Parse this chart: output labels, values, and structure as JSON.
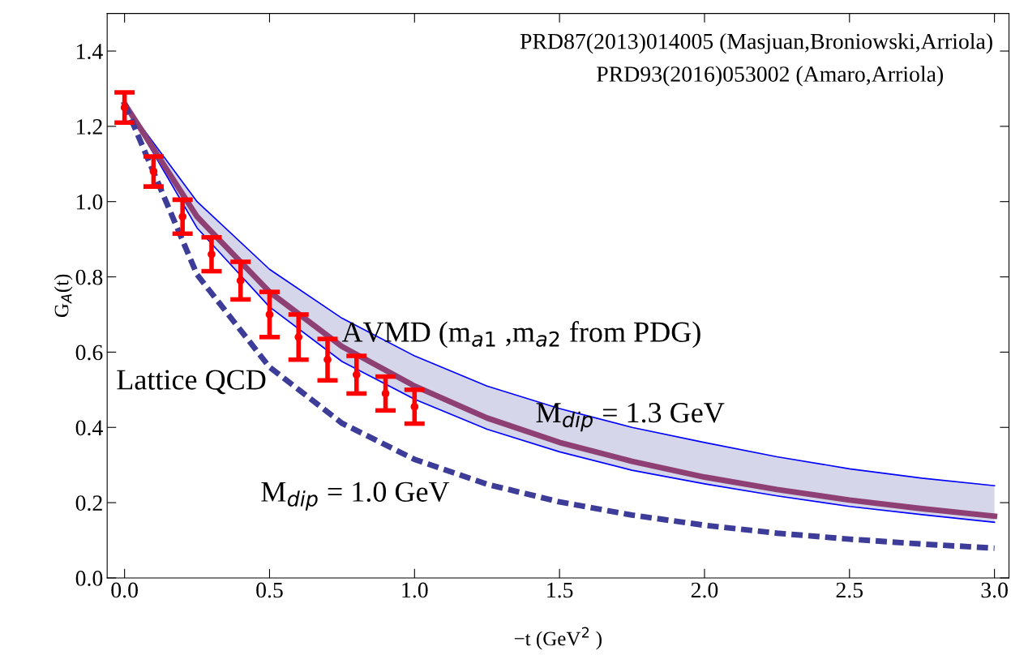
{
  "chart_data": {
    "type": "line",
    "xlabel": "−t (GeV$^{2}$ )",
    "ylabel": "G$_{A}$(t)",
    "xlim": [
      -0.06,
      3.05
    ],
    "ylim": [
      0,
      1.5
    ],
    "xticks": [
      {
        "value": 0,
        "label": "0.0"
      },
      0.5,
      {
        "value": 1,
        "label": "1.0"
      },
      1.5,
      {
        "value": 2,
        "label": "2.0"
      },
      2.5,
      {
        "value": 3,
        "label": "3.0"
      }
    ],
    "yticks": [
      {
        "value": 0,
        "label": "0.0"
      },
      0.2,
      0.4,
      0.6,
      0.8,
      {
        "value": 1,
        "label": "1.0"
      },
      1.2,
      1.4
    ],
    "grid": false,
    "legend": false,
    "series": [
      {
        "color": "#0000ff",
        "x": [
          0,
          0.25,
          0.5,
          0.75,
          1,
          1.25,
          1.5,
          1.75,
          2,
          2.25,
          2.5,
          2.75,
          3
        ],
        "values": [
          1.26,
          1.0,
          0.82,
          0.69,
          0.59,
          0.51,
          0.45,
          0.4,
          0.36,
          0.322,
          0.29,
          0.265,
          0.245
        ]
      },
      {
        "color": "#0000ff",
        "x": [
          0,
          0.25,
          0.5,
          0.75,
          1,
          1.25,
          1.5,
          1.75,
          2,
          2.25,
          2.5,
          2.75,
          3
        ],
        "values": [
          1.26,
          0.93,
          0.72,
          0.575,
          0.475,
          0.395,
          0.335,
          0.286,
          0.25,
          0.218,
          0.19,
          0.168,
          0.148
        ]
      },
      {
        "color": "#8e3f73",
        "x": [
          0,
          0.25,
          0.5,
          0.75,
          1,
          1.25,
          1.5,
          1.75,
          2,
          2.25,
          2.5,
          2.75,
          3
        ],
        "values": [
          1.26,
          0.96,
          0.76,
          0.615,
          0.51,
          0.425,
          0.36,
          0.31,
          0.268,
          0.235,
          0.207,
          0.184,
          0.164
        ],
        "lower": [
          1.26,
          0.93,
          0.72,
          0.575,
          0.475,
          0.395,
          0.335,
          0.286,
          0.25,
          0.218,
          0.19,
          0.168,
          0.148
        ],
        "upper": [
          1.26,
          1.0,
          0.82,
          0.69,
          0.59,
          0.51,
          0.45,
          0.4,
          0.36,
          0.322,
          0.29,
          0.265,
          0.245
        ]
      },
      {
        "color": "#3d3d99",
        "line_style": "dashed",
        "x": [
          0,
          0.25,
          0.5,
          0.75,
          1,
          1.25,
          1.5,
          1.75,
          2,
          2.25,
          2.5,
          2.75,
          3
        ],
        "values": [
          1.26,
          0.806,
          0.56,
          0.411,
          0.315,
          0.249,
          0.202,
          0.167,
          0.14,
          0.119,
          0.103,
          0.09,
          0.079
        ]
      },
      {
        "type": "scatter",
        "color": "#ff0000",
        "marker": "circle",
        "x": [
          0,
          0.1,
          0.2,
          0.3,
          0.4,
          0.5,
          0.6,
          0.7,
          0.8,
          0.9,
          1.0
        ],
        "values": [
          1.25,
          1.08,
          0.96,
          0.86,
          0.79,
          0.7,
          0.64,
          0.58,
          0.54,
          0.49,
          0.455
        ],
        "errors": [
          0.04,
          0.04,
          0.045,
          0.045,
          0.05,
          0.06,
          0.06,
          0.055,
          0.05,
          0.045,
          0.045
        ]
      }
    ],
    "annotations": [
      "PRD87(2013)014005 (Masjuan,Broniowski,Arriola)",
      "PRD93(2016)053002 (Amaro,Arriola)",
      "AVMD (m$_{a1}$ ,m$_{a2}$ from PDG)",
      "M$_{dip}$ = 1.3 GeV",
      "M$_{dip}$ = 1.0 GeV",
      "Lattice QCD"
    ]
  }
}
